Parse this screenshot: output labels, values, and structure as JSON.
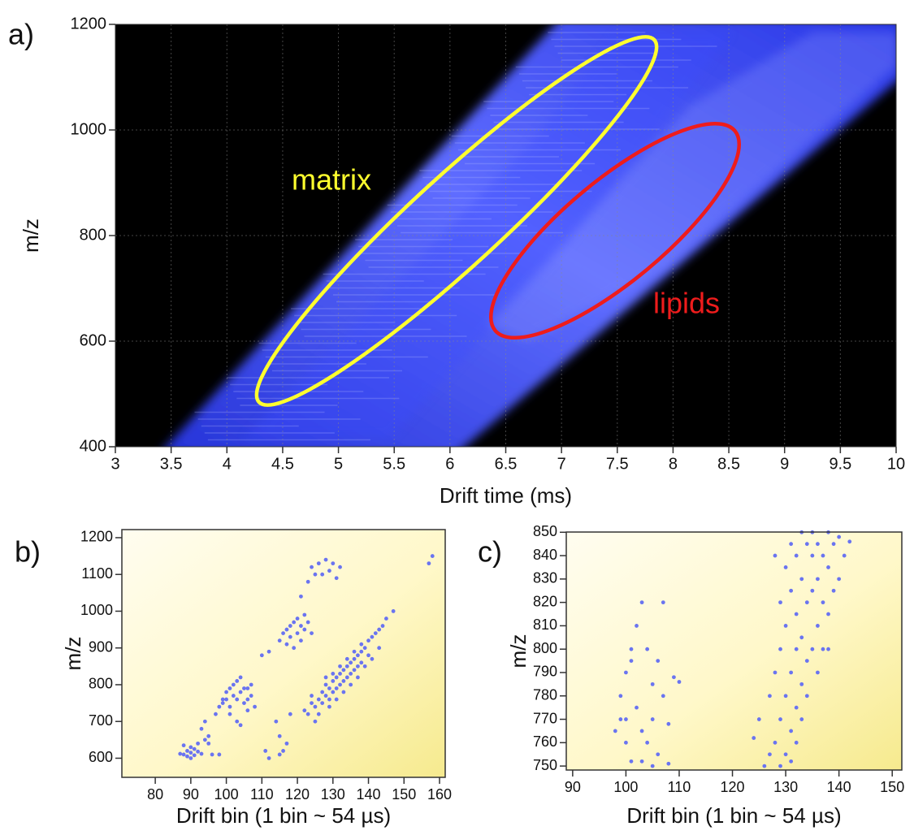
{
  "chart_data": [
    {
      "type": "heatmap",
      "panel_label": "a)",
      "xlabel": "Drift time (ms)",
      "ylabel": "m/z",
      "xlim": [
        3,
        10
      ],
      "xticks": [
        3,
        3.5,
        4,
        4.5,
        5,
        5.5,
        6,
        6.5,
        7,
        7.5,
        8,
        8.5,
        9,
        9.5,
        10
      ],
      "ylim": [
        400,
        1200
      ],
      "yticks": [
        400,
        600,
        800,
        1000,
        1200
      ],
      "grid": true,
      "color": "#3a4cff",
      "annotations": [
        {
          "text": "matrix",
          "color": "#ffff2e"
        },
        {
          "text": "lipids",
          "color": "#ee1c1c"
        }
      ]
    },
    {
      "type": "scatter",
      "panel_label": "b)",
      "xlabel": "Drift bin (1 bin ~ 54 µs)",
      "ylabel": "m/z",
      "xlim": [
        70.6,
        161.6
      ],
      "xticks": [
        80,
        90,
        100,
        110,
        120,
        130,
        140,
        150,
        160
      ],
      "ylim": [
        548,
        1222
      ],
      "yticks": [
        600,
        700,
        800,
        900,
        1000,
        1100,
        1200
      ],
      "color": "#6a74f0",
      "x": [
        87,
        88,
        89,
        89,
        90,
        90,
        91,
        91,
        92,
        92,
        93,
        94,
        95,
        88,
        90,
        96,
        98,
        95,
        97,
        98,
        99,
        100,
        100,
        101,
        101,
        102,
        102,
        103,
        103,
        104,
        104,
        105,
        105,
        106,
        106,
        107,
        107,
        108,
        103,
        104,
        99,
        101,
        106,
        93,
        94,
        110,
        112,
        111,
        112,
        114,
        115,
        116,
        117,
        118,
        115,
        115,
        116,
        117,
        118,
        118,
        119,
        120,
        120,
        121,
        122,
        122,
        123,
        124,
        117,
        119,
        121,
        121,
        123,
        124,
        126,
        127,
        128,
        129,
        130,
        131,
        132,
        125,
        122,
        123,
        124,
        125,
        126,
        127,
        127,
        128,
        128,
        129,
        129,
        130,
        130,
        131,
        131,
        132,
        132,
        133,
        133,
        134,
        134,
        135,
        135,
        136,
        136,
        137,
        137,
        138,
        138,
        139,
        140,
        140,
        141,
        142,
        143,
        144,
        145,
        147,
        126,
        129,
        131,
        133,
        135,
        137,
        139,
        141,
        143,
        130,
        128,
        132,
        134,
        136,
        138,
        125,
        124,
        157,
        158
      ],
      "values": [
        612,
        610,
        620,
        605,
        630,
        615,
        625,
        608,
        640,
        618,
        612,
        650,
        660,
        635,
        600,
        610,
        610,
        640,
        720,
        740,
        750,
        760,
        780,
        790,
        740,
        770,
        800,
        810,
        760,
        820,
        780,
        790,
        750,
        760,
        730,
        770,
        800,
        740,
        700,
        690,
        760,
        720,
        790,
        680,
        700,
        880,
        890,
        620,
        600,
        700,
        660,
        620,
        640,
        720,
        610,
        920,
        940,
        950,
        960,
        930,
        970,
        980,
        940,
        960,
        990,
        950,
        970,
        940,
        910,
        900,
        920,
        1040,
        1080,
        1120,
        1130,
        1100,
        1140,
        1110,
        1130,
        1090,
        1120,
        1100,
        730,
        720,
        750,
        740,
        760,
        780,
        750,
        770,
        800,
        790,
        760,
        810,
        780,
        820,
        790,
        830,
        800,
        840,
        810,
        850,
        820,
        860,
        830,
        870,
        840,
        880,
        850,
        890,
        860,
        900,
        920,
        880,
        930,
        940,
        950,
        960,
        980,
        1000,
        720,
        740,
        760,
        780,
        800,
        820,
        850,
        870,
        900,
        830,
        820,
        850,
        870,
        890,
        910,
        700,
        770,
        1130,
        1150
      ]
    },
    {
      "type": "scatter",
      "panel_label": "c)",
      "xlabel": "Drift bin (1 bin ~ 54 µs)",
      "ylabel": "m/z",
      "xlim": [
        88.8,
        151.8
      ],
      "xticks": [
        90,
        100,
        110,
        120,
        130,
        140,
        150
      ],
      "ylim": [
        748.3,
        850.1
      ],
      "yticks": [
        750,
        760,
        770,
        780,
        790,
        800,
        810,
        820,
        830,
        840,
        850
      ],
      "color": "#6a74f0",
      "x": [
        98,
        99,
        100,
        100,
        100,
        101,
        101,
        102,
        102,
        103,
        103,
        104,
        104,
        105,
        105,
        106,
        106,
        107,
        107,
        108,
        109,
        110,
        101,
        103,
        105,
        108,
        99,
        124,
        125,
        126,
        127,
        127,
        128,
        128,
        128,
        129,
        129,
        129,
        130,
        130,
        130,
        130,
        131,
        131,
        131,
        131,
        132,
        132,
        132,
        132,
        133,
        133,
        133,
        133,
        134,
        134,
        134,
        134,
        135,
        135,
        135,
        135,
        136,
        136,
        136,
        137,
        137,
        137,
        138,
        138,
        138,
        139,
        139,
        140,
        140,
        141,
        142,
        132,
        133,
        129,
        131,
        136,
        138
      ],
      "values": [
        765,
        780,
        760,
        790,
        770,
        752,
        800,
        810,
        775,
        820,
        765,
        800,
        760,
        785,
        770,
        755,
        795,
        820,
        780,
        768,
        788,
        786,
        795,
        752,
        750,
        751,
        770,
        762,
        770,
        750,
        755,
        780,
        760,
        790,
        840,
        770,
        800,
        820,
        755,
        780,
        810,
        835,
        765,
        790,
        825,
        845,
        775,
        800,
        815,
        840,
        785,
        805,
        830,
        850,
        780,
        795,
        820,
        845,
        800,
        825,
        840,
        850,
        810,
        830,
        845,
        800,
        820,
        840,
        815,
        835,
        850,
        825,
        845,
        830,
        848,
        840,
        846,
        760,
        770,
        750,
        752,
        790,
        800
      ]
    }
  ]
}
